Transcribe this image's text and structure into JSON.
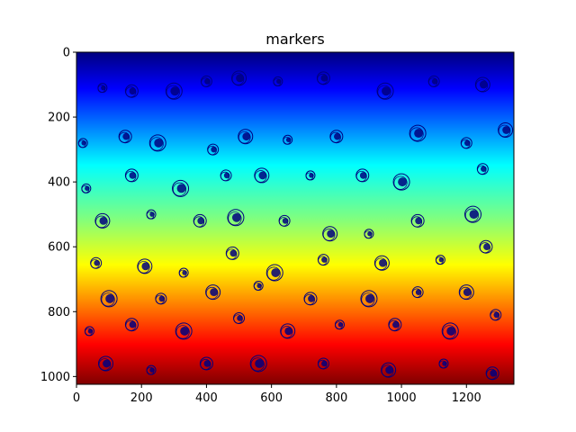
{
  "chart_data": {
    "type": "heatmap",
    "title": "markers",
    "xlabel": "",
    "ylabel": "",
    "xlim": [
      0,
      1346
    ],
    "ylim": [
      1024,
      0
    ],
    "y_inverted": true,
    "colormap": "jet",
    "gradient_axis": "y",
    "xticks": [
      0,
      200,
      400,
      600,
      800,
      1000,
      1200
    ],
    "yticks": [
      0,
      200,
      400,
      600,
      800,
      1000
    ],
    "grid": false,
    "marker_color": "#00007f",
    "markers": [
      [
        80,
        110
      ],
      [
        170,
        120
      ],
      [
        300,
        120
      ],
      [
        400,
        90
      ],
      [
        500,
        80
      ],
      [
        620,
        90
      ],
      [
        760,
        80
      ],
      [
        950,
        120
      ],
      [
        1100,
        90
      ],
      [
        1250,
        100
      ],
      [
        20,
        280
      ],
      [
        150,
        260
      ],
      [
        250,
        280
      ],
      [
        420,
        300
      ],
      [
        520,
        260
      ],
      [
        650,
        270
      ],
      [
        800,
        260
      ],
      [
        1050,
        250
      ],
      [
        1200,
        280
      ],
      [
        1320,
        240
      ],
      [
        30,
        420
      ],
      [
        170,
        380
      ],
      [
        320,
        420
      ],
      [
        460,
        380
      ],
      [
        570,
        380
      ],
      [
        720,
        380
      ],
      [
        880,
        380
      ],
      [
        1000,
        400
      ],
      [
        1250,
        360
      ],
      [
        80,
        520
      ],
      [
        230,
        500
      ],
      [
        380,
        520
      ],
      [
        490,
        510
      ],
      [
        640,
        520
      ],
      [
        780,
        560
      ],
      [
        900,
        560
      ],
      [
        1050,
        520
      ],
      [
        1220,
        500
      ],
      [
        60,
        650
      ],
      [
        210,
        660
      ],
      [
        330,
        680
      ],
      [
        480,
        620
      ],
      [
        610,
        680
      ],
      [
        760,
        640
      ],
      [
        940,
        650
      ],
      [
        1120,
        640
      ],
      [
        1260,
        600
      ],
      [
        100,
        760
      ],
      [
        260,
        760
      ],
      [
        420,
        740
      ],
      [
        560,
        720
      ],
      [
        720,
        760
      ],
      [
        900,
        760
      ],
      [
        1050,
        740
      ],
      [
        1200,
        740
      ],
      [
        40,
        860
      ],
      [
        170,
        840
      ],
      [
        330,
        860
      ],
      [
        500,
        820
      ],
      [
        650,
        860
      ],
      [
        810,
        840
      ],
      [
        980,
        840
      ],
      [
        1150,
        860
      ],
      [
        1290,
        810
      ],
      [
        90,
        960
      ],
      [
        230,
        980
      ],
      [
        400,
        960
      ],
      [
        560,
        960
      ],
      [
        760,
        960
      ],
      [
        960,
        980
      ],
      [
        1130,
        960
      ],
      [
        1280,
        990
      ]
    ]
  }
}
